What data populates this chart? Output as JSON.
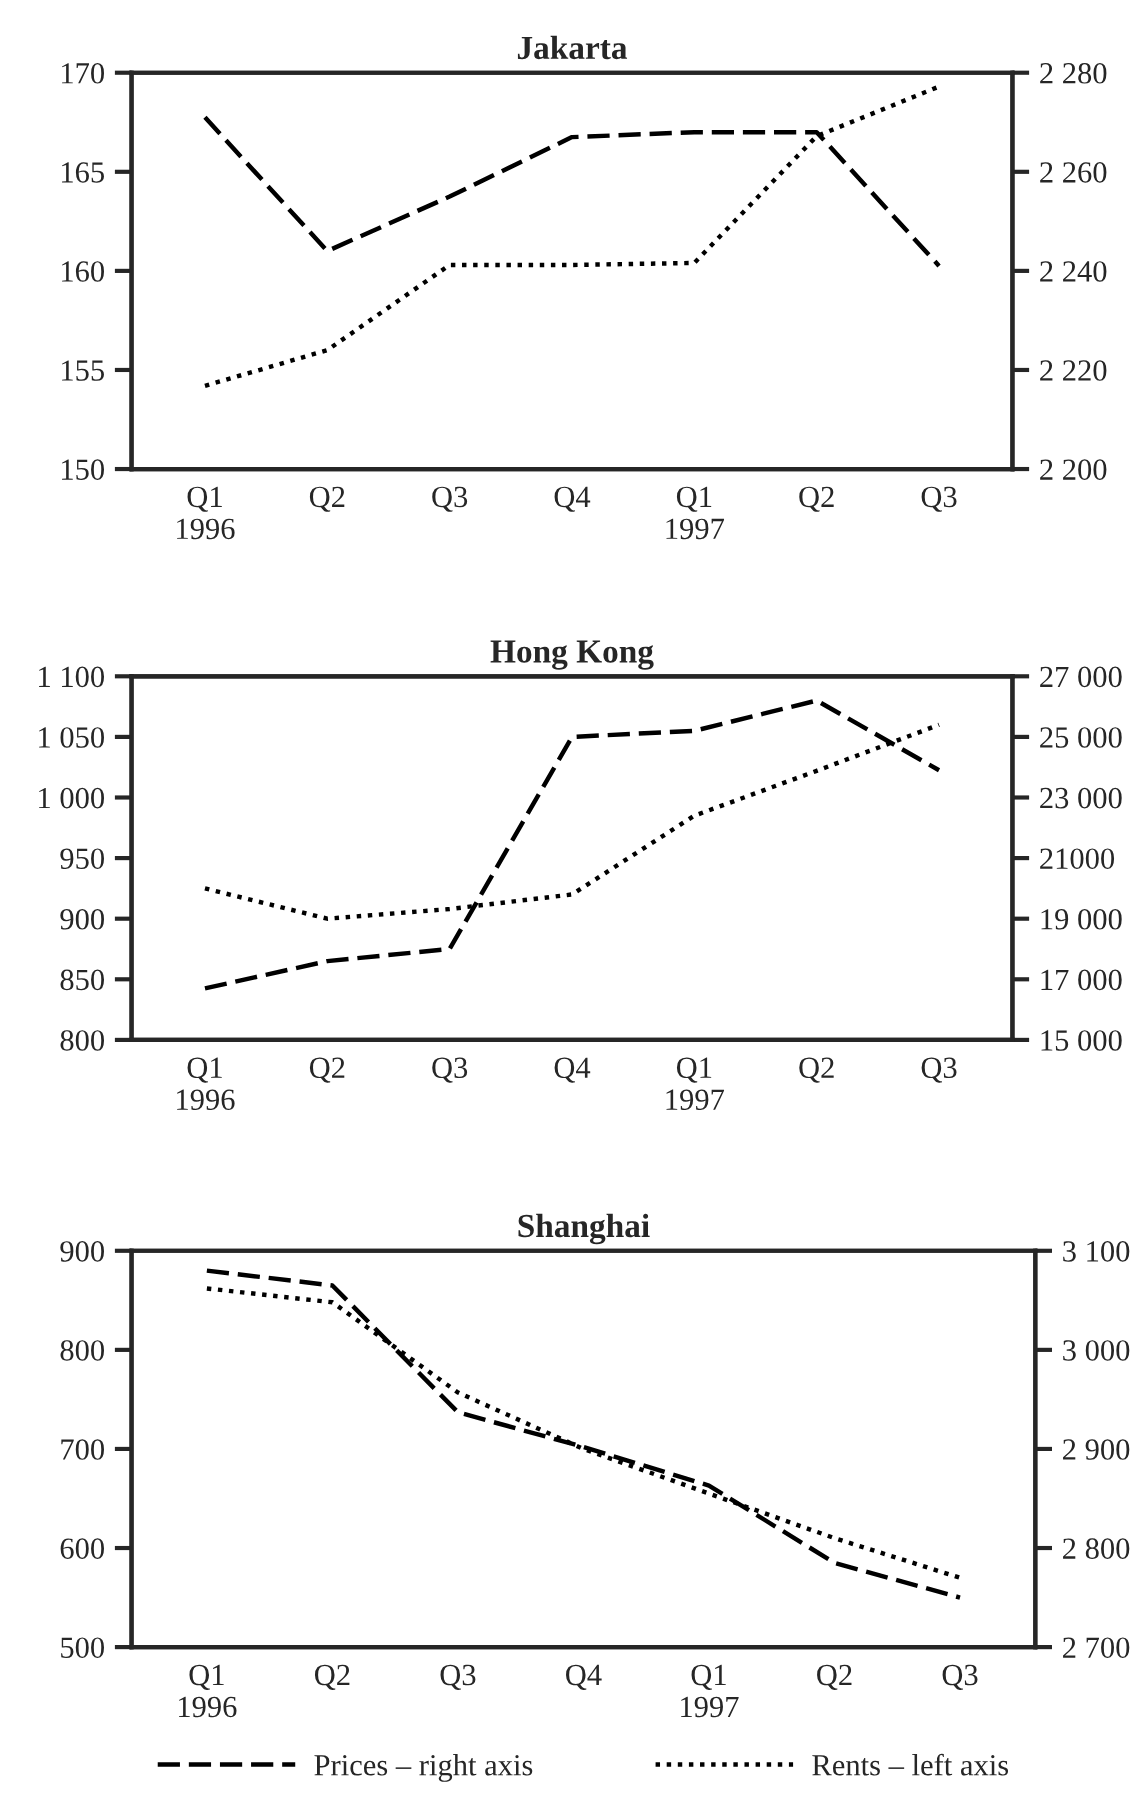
{
  "chart_data": [
    {
      "type": "line",
      "title": "Jakarta",
      "categories": [
        "Q1\n1996",
        "Q2",
        "Q3",
        "Q4",
        "Q1\n1997",
        "Q2",
        "Q3"
      ],
      "series": [
        {
          "color": "#000000",
          "line_style": "dashed",
          "axis": "y2",
          "values": [
            2271,
            2244,
            2255,
            2267,
            2268,
            2268,
            2241
          ]
        },
        {
          "color": "#000000",
          "line_style": "dotted",
          "values": [
            154.2,
            156,
            160.3,
            160.3,
            160.4,
            166.8,
            169.3
          ]
        }
      ],
      "ylim": [
        150,
        170
      ],
      "yticks": [
        150,
        155,
        160,
        165,
        170
      ],
      "y2lim": [
        2200,
        2280
      ],
      "y2ticks": [
        {
          "value": 2200,
          "label": "2 200"
        },
        {
          "value": 2220,
          "label": "2 220"
        },
        {
          "value": 2240,
          "label": "2 240"
        },
        {
          "value": 2260,
          "label": "2 260"
        },
        {
          "value": 2280,
          "label": "2 280"
        }
      ]
    },
    {
      "type": "line",
      "title": "Hong Kong",
      "categories": [
        "Q1\n1996",
        "Q2",
        "Q3",
        "Q4",
        "Q1\n1997",
        "Q2",
        "Q3"
      ],
      "series": [
        {
          "color": "#000000",
          "line_style": "dashed",
          "axis": "y2",
          "values": [
            16700,
            17600,
            18000,
            25000,
            25200,
            26200,
            23900
          ]
        },
        {
          "color": "#000000",
          "line_style": "dotted",
          "values": [
            925,
            900,
            908,
            920,
            985,
            1022,
            1060
          ]
        }
      ],
      "ylim": [
        800,
        1100
      ],
      "yticks": [
        800,
        850,
        900,
        950,
        {
          "value": 1000,
          "label": "1 000"
        },
        {
          "value": 1050,
          "label": "1 050"
        },
        {
          "value": 1100,
          "label": "1 100"
        }
      ],
      "y2lim": [
        15000,
        27000
      ],
      "y2ticks": [
        {
          "value": 15000,
          "label": "15 000"
        },
        {
          "value": 17000,
          "label": "17 000"
        },
        {
          "value": 19000,
          "label": "19 000"
        },
        {
          "value": 21000,
          "label": "21000"
        },
        {
          "value": 23000,
          "label": "23 000"
        },
        {
          "value": 25000,
          "label": "25 000"
        },
        {
          "value": 27000,
          "label": "27 000"
        }
      ]
    },
    {
      "type": "line",
      "title": "Shanghai",
      "categories": [
        "Q1\n1996",
        "Q2",
        "Q3",
        "Q4",
        "Q1\n1997",
        "Q2",
        "Q3"
      ],
      "series": [
        {
          "name": "Prices – right axis",
          "color": "#000000",
          "line_style": "dashed",
          "axis": "y2",
          "values": [
            3080,
            3065,
            2937,
            2902,
            2863,
            2785,
            2750
          ]
        },
        {
          "name": "Rents – left axis",
          "color": "#000000",
          "line_style": "dotted",
          "values": [
            862,
            848,
            757,
            700,
            655,
            610,
            570
          ]
        }
      ],
      "ylim": [
        500,
        900
      ],
      "yticks": [
        500,
        600,
        700,
        800,
        900
      ],
      "y2lim": [
        2700,
        3100
      ],
      "y2ticks": [
        {
          "value": 2700,
          "label": "2 700"
        },
        {
          "value": 2800,
          "label": "2 800"
        },
        {
          "value": 2900,
          "label": "2 900"
        },
        {
          "value": 3000,
          "label": "3 000"
        },
        {
          "value": 3100,
          "label": "3 100"
        }
      ],
      "legend": "bottom"
    }
  ]
}
